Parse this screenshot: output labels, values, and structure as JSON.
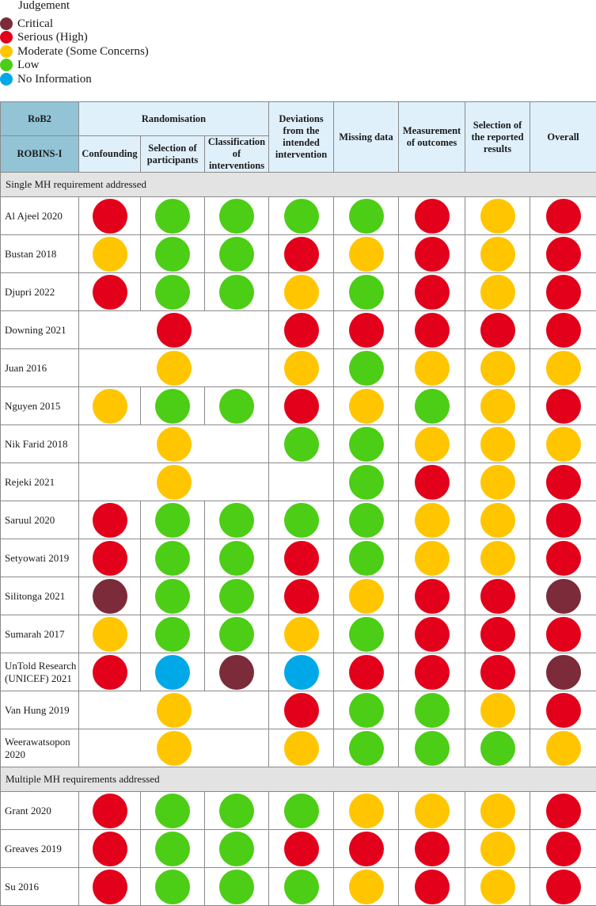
{
  "legend": {
    "title": "Judgement",
    "items": [
      {
        "key": "C",
        "label": "Critical",
        "color": "#7b2b3a"
      },
      {
        "key": "H",
        "label": "Serious (High)",
        "color": "#e2001a"
      },
      {
        "key": "M",
        "label": "Moderate (Some Concerns)",
        "color": "#ffc600"
      },
      {
        "key": "L",
        "label": "Low",
        "color": "#4ccd16"
      },
      {
        "key": "N",
        "label": "No Information",
        "color": "#00a8e8"
      }
    ]
  },
  "header": {
    "tool_rob2": "RoB2",
    "tool_robins": "ROBINS-I",
    "randomisation": "Randomisation",
    "confounding": "Confounding",
    "selection_participants": "Selection of participants",
    "classification_interventions": "Classification of interventions",
    "deviations": "Deviations from the intended intervention",
    "missing_data": "Missing data",
    "measurement": "Measurement of outcomes",
    "selection_results": "Selection of the reported results",
    "overall": "Overall"
  },
  "sections": [
    {
      "title": "Single MH requirement addressed",
      "rows": [
        {
          "study": "Al Ajeel 2020",
          "type": "robins",
          "ratings": [
            "H",
            "L",
            "L",
            "L",
            "L",
            "H",
            "M",
            "H"
          ]
        },
        {
          "study": "Bustan 2018",
          "type": "robins",
          "ratings": [
            "M",
            "L",
            "L",
            "H",
            "M",
            "H",
            "M",
            "H"
          ]
        },
        {
          "study": "Djupri 2022",
          "type": "robins",
          "ratings": [
            "H",
            "L",
            "L",
            "M",
            "L",
            "H",
            "M",
            "H"
          ]
        },
        {
          "study": "Downing 2021",
          "type": "rob2",
          "ratings": [
            "H",
            "H",
            "H",
            "H",
            "H",
            "H"
          ]
        },
        {
          "study": "Juan 2016",
          "type": "rob2",
          "ratings": [
            "M",
            "M",
            "L",
            "M",
            "M",
            "M"
          ]
        },
        {
          "study": "Nguyen 2015",
          "type": "robins",
          "ratings": [
            "M",
            "L",
            "L",
            "H",
            "M",
            "L",
            "M",
            "H"
          ]
        },
        {
          "study": "Nik Farid 2018",
          "type": "rob2",
          "ratings": [
            "M",
            "L",
            "L",
            "M",
            "M",
            "M"
          ]
        },
        {
          "study": "Rejeki 2021",
          "type": "rob2",
          "ratings": [
            "M",
            "",
            "L",
            "H",
            "M",
            "H"
          ]
        },
        {
          "study": "Saruul 2020",
          "type": "robins",
          "ratings": [
            "H",
            "L",
            "L",
            "L",
            "L",
            "M",
            "M",
            "H"
          ]
        },
        {
          "study": "Setyowati 2019",
          "type": "robins",
          "ratings": [
            "H",
            "L",
            "L",
            "H",
            "L",
            "M",
            "M",
            "H"
          ]
        },
        {
          "study": "Silitonga 2021",
          "type": "robins",
          "ratings": [
            "C",
            "L",
            "L",
            "H",
            "M",
            "H",
            "H",
            "C"
          ]
        },
        {
          "study": "Sumarah 2017",
          "type": "robins",
          "ratings": [
            "M",
            "L",
            "L",
            "M",
            "L",
            "H",
            "H",
            "H"
          ]
        },
        {
          "study": "UnTold Research (UNICEF) 2021",
          "type": "robins",
          "ratings": [
            "H",
            "N",
            "C",
            "N",
            "H",
            "H",
            "H",
            "C"
          ]
        },
        {
          "study": "Van Hung 2019",
          "type": "rob2",
          "ratings": [
            "M",
            "H",
            "L",
            "L",
            "M",
            "H"
          ]
        },
        {
          "study": "Weerawatsopon 2020",
          "type": "rob2",
          "ratings": [
            "M",
            "M",
            "L",
            "L",
            "L",
            "M"
          ]
        }
      ]
    },
    {
      "title": "Multiple MH requirements addressed",
      "rows": [
        {
          "study": "Grant 2020",
          "type": "robins",
          "ratings": [
            "H",
            "L",
            "L",
            "L",
            "M",
            "M",
            "M",
            "H"
          ]
        },
        {
          "study": "Greaves 2019",
          "type": "robins",
          "ratings": [
            "H",
            "L",
            "L",
            "H",
            "H",
            "H",
            "M",
            "H"
          ]
        },
        {
          "study": "Su 2016",
          "type": "robins",
          "ratings": [
            "H",
            "L",
            "L",
            "L",
            "M",
            "H",
            "M",
            "H"
          ]
        }
      ]
    }
  ]
}
